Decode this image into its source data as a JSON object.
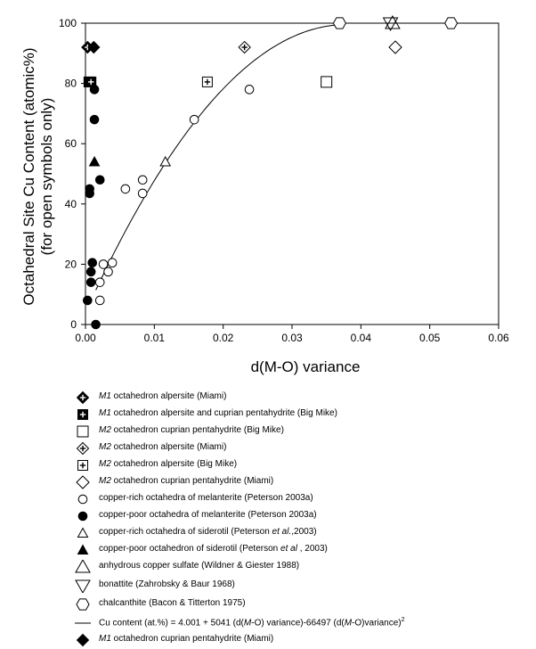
{
  "chart_data": {
    "type": "scatter",
    "xlabel": "d(M-O) variance",
    "ylabel": [
      "Octahedral  Site Cu Content (atomic%)",
      "(for open symbols only)"
    ],
    "xlim": [
      0.0,
      0.06
    ],
    "ylim": [
      0,
      100
    ],
    "xticks": [
      "0.00",
      "0.01",
      "0.02",
      "0.03",
      "0.04",
      "0.05",
      "0.06"
    ],
    "yticks": [
      "0",
      "20",
      "40",
      "60",
      "80",
      "100"
    ],
    "grid": false,
    "legend_placement": "below",
    "series": [
      {
        "name": "M1 octahedron alpersite (Miami)",
        "marker": "diamond-filled-plus",
        "points": [
          [
            0.0003,
            92
          ]
        ]
      },
      {
        "name": "M1 octahedron alpersite and cuprian pentahydrite (Big Mike)",
        "marker": "square-filled-plus",
        "points": [
          [
            0.0005,
            80.5
          ],
          [
            0.0008,
            80.5
          ]
        ]
      },
      {
        "name": "M2 octahedron cuprian pentahydrite (Big Mike)",
        "marker": "square-open",
        "points": [
          [
            0.035,
            80.5
          ]
        ]
      },
      {
        "name": "M2 octahedron alpersite (Miami)",
        "marker": "diamond-open-plus",
        "points": [
          [
            0.0231,
            92
          ]
        ]
      },
      {
        "name": "M2 octahedron alpersite (Big Mike)",
        "marker": "square-open-plus",
        "points": [
          [
            0.0177,
            80.5
          ]
        ]
      },
      {
        "name": "M2 octahedron cuprian pentahydrite (Miami)",
        "marker": "diamond-open",
        "points": [
          [
            0.045,
            92
          ]
        ]
      },
      {
        "name": "copper-rich octahedra of melanterite (Peterson 2003a)",
        "marker": "circle-open",
        "points": [
          [
            0.0021,
            14
          ],
          [
            0.0021,
            8
          ],
          [
            0.0026,
            20
          ],
          [
            0.0033,
            17.5
          ],
          [
            0.0039,
            20.5
          ],
          [
            0.0058,
            45
          ],
          [
            0.0083,
            48
          ],
          [
            0.0083,
            43.5
          ],
          [
            0.0158,
            68
          ],
          [
            0.0238,
            78
          ]
        ]
      },
      {
        "name": "copper-poor octahedra of melanterite (Peterson 2003a)",
        "marker": "circle-filled",
        "points": [
          [
            0.0003,
            8
          ],
          [
            0.0006,
            43.5
          ],
          [
            0.0006,
            45
          ],
          [
            0.0008,
            14
          ],
          [
            0.0008,
            17.5
          ],
          [
            0.001,
            20.5
          ],
          [
            0.0013,
            68
          ],
          [
            0.0013,
            78
          ],
          [
            0.0015,
            0
          ],
          [
            0.0021,
            48
          ]
        ]
      },
      {
        "name": "copper-rich octahedra of siderotil (Peterson et al.,2003)",
        "marker": "triangle-open",
        "points": [
          [
            0.0116,
            54
          ]
        ]
      },
      {
        "name": "copper-poor octahedron of siderotil (Peterson et al , 2003)",
        "marker": "triangle-filled",
        "points": [
          [
            0.0013,
            54
          ]
        ]
      },
      {
        "name": "anhydrous copper sulfate (Wildner & Giester 1988)",
        "marker": "triangle-open-large",
        "points": [
          [
            0.0446,
            100
          ]
        ]
      },
      {
        "name": "bonattite (Zahrobsky & Baur 1968)",
        "marker": "triangle-down-open-large",
        "points": [
          [
            0.0443,
            100
          ]
        ]
      },
      {
        "name": "chalcanthite (Bacon & Titterton 1975)",
        "marker": "hexagon-open",
        "points": [
          [
            0.0369,
            100
          ],
          [
            0.0531,
            100
          ]
        ]
      },
      {
        "name": "M1 octahedron cuprian pentahydrite (Miami)",
        "marker": "diamond-filled",
        "points": [
          [
            0.0012,
            92
          ]
        ]
      }
    ],
    "fit": {
      "name": "Cu content (at.%) = 4.001 + 5041 (d(M-O) variance)-66497 (d(M-O)variance)2",
      "intercept": 4.001,
      "linear": 5041,
      "quadratic": -66497,
      "x_range": [
        0.0015,
        0.0372
      ]
    }
  },
  "legend_text": [
    {
      "pre": "",
      "italic": "M1",
      "post": " octahedron alpersite (Miami)"
    },
    {
      "pre": "",
      "italic": "M1",
      "post": " octahedron alpersite and cuprian pentahydrite (Big Mike)"
    },
    {
      "pre": "",
      "italic": "M2",
      "post": " octahedron cuprian pentahydrite (Big Mike)"
    },
    {
      "pre": "",
      "italic": "M2",
      "post": " octahedron alpersite (Miami)"
    },
    {
      "pre": "",
      "italic": "M2",
      "post": " octahedron alpersite (Big Mike)"
    },
    {
      "pre": "",
      "italic": "M2",
      "post": " octahedron cuprian pentahydrite (Miami)"
    },
    {
      "pre": "copper-rich octahedra of melanterite (Peterson 2003a)",
      "italic": "",
      "post": ""
    },
    {
      "pre": "copper-poor octahedra of melanterite (Peterson 2003a)",
      "italic": "",
      "post": ""
    },
    {
      "pre": "copper-rich octahedra of siderotil (Peterson ",
      "italic": "et al.",
      "post": ",2003)"
    },
    {
      "pre": "copper-poor octahedron of siderotil (Peterson ",
      "italic": "et al",
      "post": " , 2003)"
    },
    {
      "pre": "anhydrous copper sulfate (Wildner & Giester 1988)",
      "italic": "",
      "post": ""
    },
    {
      "pre": "bonattite (Zahrobsky & Baur 1968)",
      "italic": "",
      "post": ""
    },
    {
      "pre": "chalcanthite (Bacon & Titterton 1975)",
      "italic": "",
      "post": ""
    }
  ],
  "fit_legend": {
    "p1": "Cu content (at.%) = 4.001 +  5041 (d(",
    "i1": "M",
    "p2": "-O) variance)-66497 (d(",
    "i2": "M",
    "p3": "-O)variance)",
    "sup": "2"
  },
  "last_legend": {
    "italic": "M1",
    "post": " octahedron cuprian pentahydrite (Miami)"
  }
}
